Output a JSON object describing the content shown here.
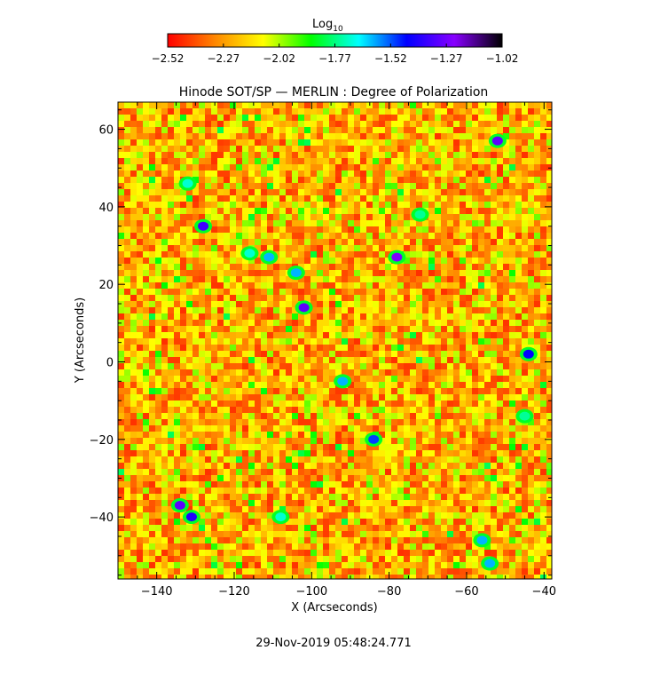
{
  "chart_data": {
    "type": "heatmap",
    "title": "Hinode SOT/SP — MERLIN : Degree of Polarization",
    "xlabel": "X (Arcseconds)",
    "ylabel": "Y (Arcseconds)",
    "xlim": [
      -150,
      -38
    ],
    "ylim": [
      -56,
      67
    ],
    "x_ticks": [
      -140,
      -120,
      -100,
      -80,
      -60,
      -40
    ],
    "x_tick_labels": [
      "−140",
      "−120",
      "−100",
      "−80",
      "−60",
      "−40"
    ],
    "y_ticks": [
      60,
      40,
      20,
      0,
      -20,
      -40
    ],
    "y_tick_labels": [
      "60",
      "40",
      "20",
      "0",
      "−20",
      "−40"
    ],
    "colorbar": {
      "label_main": "Log",
      "label_sub": "10",
      "range": [
        -2.52,
        -1.02
      ],
      "ticks": [
        -2.52,
        -2.27,
        -2.02,
        -1.77,
        -1.52,
        -1.27,
        -1.02
      ],
      "tick_labels": [
        "−2.52",
        "−2.27",
        "−2.02",
        "−1.77",
        "−1.52",
        "−1.27",
        "−1.02"
      ],
      "colors": [
        "#ff0000",
        "#ff8800",
        "#ffff00",
        "#00ff00",
        "#00ffff",
        "#0000ff",
        "#8800ff",
        "#000000"
      ]
    },
    "features": [
      {
        "x": -78,
        "y": 27,
        "value": -1.25
      },
      {
        "x": -102,
        "y": 14,
        "value": -1.3
      },
      {
        "x": -128,
        "y": 35,
        "value": -1.35
      },
      {
        "x": -52,
        "y": 57,
        "value": -1.3
      },
      {
        "x": -134,
        "y": -37,
        "value": -1.3
      },
      {
        "x": -131,
        "y": -40,
        "value": -1.4
      },
      {
        "x": -111,
        "y": 27,
        "value": -1.6
      },
      {
        "x": -116,
        "y": 28,
        "value": -1.7
      },
      {
        "x": -44,
        "y": 2,
        "value": -1.45
      },
      {
        "x": -84,
        "y": -20,
        "value": -1.5
      },
      {
        "x": -56,
        "y": -46,
        "value": -1.6
      },
      {
        "x": -54,
        "y": -52,
        "value": -1.6
      },
      {
        "x": -132,
        "y": 46,
        "value": -1.7
      },
      {
        "x": -92,
        "y": -5,
        "value": -1.6
      },
      {
        "x": -108,
        "y": -40,
        "value": -1.7
      },
      {
        "x": -72,
        "y": 38,
        "value": -1.75
      },
      {
        "x": -45,
        "y": -14,
        "value": -1.75
      },
      {
        "x": -104,
        "y": 23,
        "value": -1.6
      }
    ]
  },
  "timestamp": "29-Nov-2019 05:48:24.771"
}
